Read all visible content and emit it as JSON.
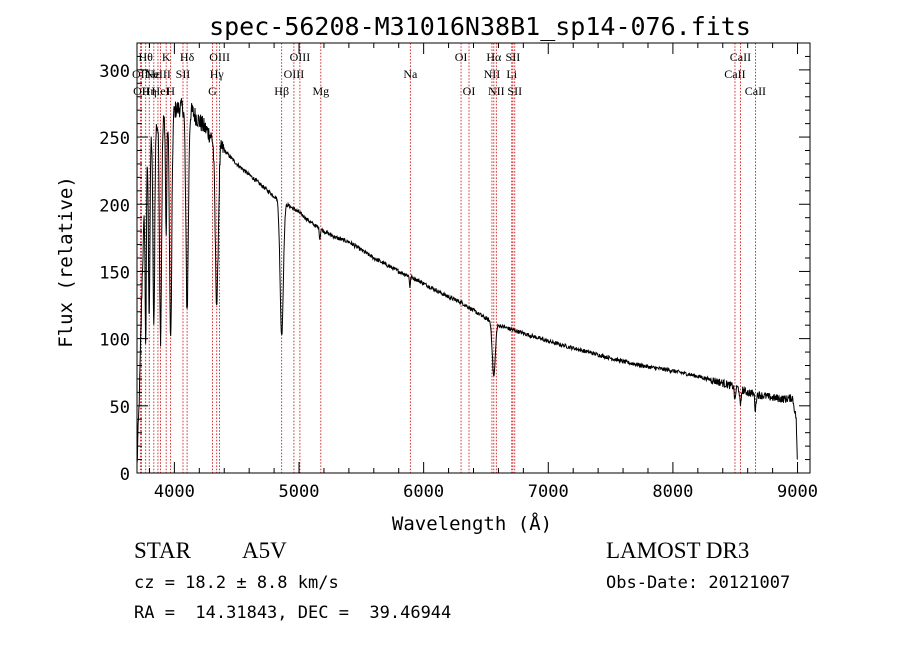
{
  "chart_data": {
    "type": "line",
    "title": "spec-56208-M31016N38B1_sp14-076.fits",
    "xlabel": "Wavelength (Å)",
    "ylabel": "Flux (relative)",
    "xlim": [
      3700,
      9100
    ],
    "ylim": [
      0,
      320
    ],
    "xticks": [
      4000,
      5000,
      6000,
      7000,
      8000,
      9000
    ],
    "yticks": [
      0,
      50,
      100,
      150,
      200,
      250,
      300
    ],
    "line_color": "#000000",
    "marker_color": "#cc0000",
    "continuum": [
      [
        3700,
        5
      ],
      [
        3720,
        60
      ],
      [
        3740,
        140
      ],
      [
        3760,
        200
      ],
      [
        3780,
        235
      ],
      [
        3800,
        250
      ],
      [
        3850,
        258
      ],
      [
        3900,
        262
      ],
      [
        3950,
        266
      ],
      [
        4000,
        270
      ],
      [
        4050,
        272
      ],
      [
        4100,
        272
      ],
      [
        4150,
        268
      ],
      [
        4200,
        262
      ],
      [
        4300,
        250
      ],
      [
        4400,
        240
      ],
      [
        4500,
        230
      ],
      [
        4600,
        222
      ],
      [
        4700,
        214
      ],
      [
        4800,
        206
      ],
      [
        4900,
        200
      ],
      [
        5000,
        194
      ],
      [
        5100,
        186
      ],
      [
        5200,
        180
      ],
      [
        5300,
        175
      ],
      [
        5400,
        172
      ],
      [
        5500,
        166
      ],
      [
        5600,
        160
      ],
      [
        5700,
        155
      ],
      [
        5800,
        150
      ],
      [
        5900,
        146
      ],
      [
        6000,
        141
      ],
      [
        6100,
        136
      ],
      [
        6200,
        131
      ],
      [
        6300,
        127
      ],
      [
        6400,
        121
      ],
      [
        6500,
        115
      ],
      [
        6600,
        110
      ],
      [
        6700,
        107
      ],
      [
        6800,
        104
      ],
      [
        6900,
        101
      ],
      [
        7000,
        98
      ],
      [
        7200,
        93
      ],
      [
        7400,
        88
      ],
      [
        7600,
        83
      ],
      [
        7800,
        79
      ],
      [
        8000,
        76
      ],
      [
        8200,
        72
      ],
      [
        8400,
        67
      ],
      [
        8500,
        64
      ],
      [
        8600,
        60
      ],
      [
        8700,
        58
      ],
      [
        8800,
        56
      ],
      [
        8900,
        55
      ],
      [
        8960,
        56
      ],
      [
        8990,
        40
      ],
      [
        9000,
        0
      ]
    ],
    "absorption_lines": [
      {
        "wave": 3770,
        "depth": 120,
        "width": 5
      },
      {
        "wave": 3798,
        "depth": 130,
        "width": 6
      },
      {
        "wave": 3835,
        "depth": 150,
        "width": 7
      },
      {
        "wave": 3889,
        "depth": 160,
        "width": 8
      },
      {
        "wave": 3934,
        "depth": 90,
        "width": 5
      },
      {
        "wave": 3970,
        "depth": 170,
        "width": 9
      },
      {
        "wave": 4102,
        "depth": 150,
        "width": 10
      },
      {
        "wave": 4340,
        "depth": 120,
        "width": 12
      },
      {
        "wave": 4861,
        "depth": 100,
        "width": 13
      },
      {
        "wave": 5167,
        "depth": 8,
        "width": 4
      },
      {
        "wave": 5890,
        "depth": 8,
        "width": 4
      },
      {
        "wave": 6563,
        "depth": 40,
        "width": 12
      },
      {
        "wave": 8498,
        "depth": 10,
        "width": 5
      },
      {
        "wave": 8542,
        "depth": 14,
        "width": 5
      },
      {
        "wave": 8662,
        "depth": 12,
        "width": 5
      }
    ],
    "line_markers": [
      {
        "wave": 3727,
        "label": "OII",
        "row": 2
      },
      {
        "wave": 3736,
        "label": "OII",
        "row": 3
      },
      {
        "wave": 3770,
        "label": "Hθ",
        "row": 1
      },
      {
        "wave": 3798,
        "label": "Hη",
        "row": 3
      },
      {
        "wave": 3835,
        "label": "Hε",
        "row": 2
      },
      {
        "wave": 3868,
        "label": "NeIII",
        "row": 2
      },
      {
        "wave": 3889,
        "label": "HeI",
        "row": 3
      },
      {
        "wave": 3934,
        "label": "K",
        "row": 1
      },
      {
        "wave": 3970,
        "label": "H",
        "row": 3
      },
      {
        "wave": 4069,
        "label": "SII",
        "row": 2
      },
      {
        "wave": 4102,
        "label": "Hδ",
        "row": 1
      },
      {
        "wave": 4305,
        "label": "G",
        "row": 3
      },
      {
        "wave": 4340,
        "label": "Hγ",
        "row": 2
      },
      {
        "wave": 4363,
        "label": "OIII",
        "row": 1
      },
      {
        "wave": 4861,
        "label": "Hβ",
        "row": 3
      },
      {
        "wave": 4959,
        "label": "OIII",
        "row": 2
      },
      {
        "wave": 5007,
        "label": "OIII",
        "row": 1
      },
      {
        "wave": 5175,
        "label": "Mg",
        "row": 3
      },
      {
        "wave": 5893,
        "label": "Na",
        "row": 2
      },
      {
        "wave": 6300,
        "label": "OI",
        "row": 1
      },
      {
        "wave": 6364,
        "label": "OI",
        "row": 3
      },
      {
        "wave": 6548,
        "label": "NII",
        "row": 2
      },
      {
        "wave": 6563,
        "label": "Hα",
        "row": 1
      },
      {
        "wave": 6583,
        "label": "NII",
        "row": 3
      },
      {
        "wave": 6707,
        "label": "Li",
        "row": 2
      },
      {
        "wave": 6716,
        "label": "SII",
        "row": 1
      },
      {
        "wave": 6731,
        "label": "SII",
        "row": 3
      },
      {
        "wave": 8498,
        "label": "CaII",
        "row": 2
      },
      {
        "wave": 8542,
        "label": "CaII",
        "row": 1
      },
      {
        "wave": 8662,
        "label": "CaII",
        "row": 3
      }
    ]
  },
  "info": {
    "obj_class": "STAR",
    "subclass": "A5V",
    "survey": "LAMOST DR3",
    "redshift": "cz = 18.2 ± 8.8 km/s",
    "obs_date": "Obs-Date: 20121007",
    "coords": "RA =  14.31843, DEC =  39.46944"
  }
}
